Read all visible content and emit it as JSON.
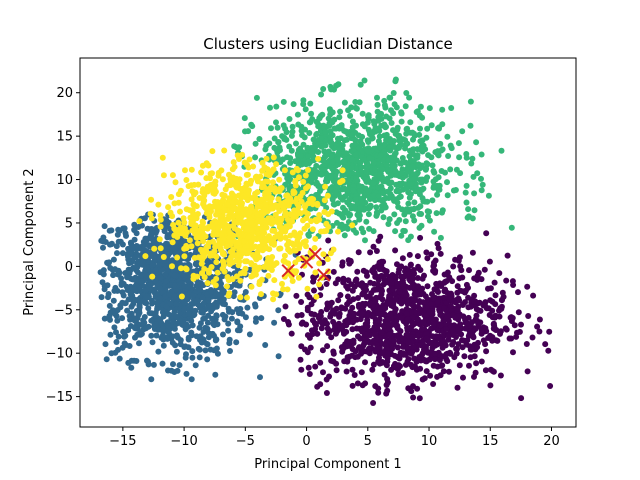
{
  "chart_data": {
    "type": "scatter",
    "title": "Clusters using Euclidian Distance",
    "xlabel": "Principal Component 1",
    "ylabel": "Principal Component 2",
    "xlim": [
      -18.5,
      22
    ],
    "ylim": [
      -18.5,
      24
    ],
    "xticks": [
      -15,
      -10,
      -5,
      0,
      5,
      10,
      15,
      20
    ],
    "yticks": [
      -15,
      -10,
      -5,
      0,
      5,
      10,
      15,
      20
    ],
    "grid": false,
    "legend": "none",
    "clusters": [
      {
        "color": "#31688e",
        "center": [
          -11,
          -2
        ],
        "spread": [
          3.2,
          4.2
        ],
        "extent": [
          -17,
          1,
          -13,
          6
        ],
        "points": 1200
      },
      {
        "color": "#440154",
        "center": [
          8,
          -6
        ],
        "spread": [
          4.2,
          3.6
        ],
        "extent": [
          -2,
          20,
          -16.5,
          4
        ],
        "points": 1200
      },
      {
        "color": "#35b779",
        "center": [
          4,
          11
        ],
        "spread": [
          4.0,
          3.8
        ],
        "extent": [
          -6,
          18,
          3,
          23
        ],
        "points": 1200
      },
      {
        "color": "#fde725",
        "center": [
          -5,
          5
        ],
        "spread": [
          3.2,
          3.5
        ],
        "extent": [
          -14,
          4,
          -4,
          14
        ],
        "points": 900
      }
    ],
    "centroids": [
      {
        "x": -1.5,
        "y": -0.5
      },
      {
        "x": 0.0,
        "y": 0.5
      },
      {
        "x": 0.7,
        "y": 1.4
      },
      {
        "x": 1.4,
        "y": -1.0
      }
    ],
    "centroid_color": "#d62728",
    "centroid_marker": "x"
  }
}
